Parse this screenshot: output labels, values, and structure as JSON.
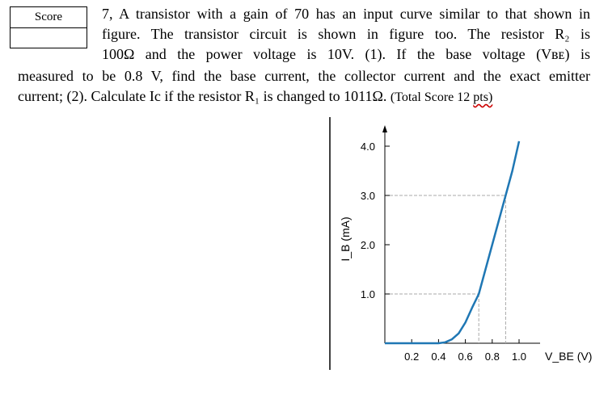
{
  "score_box": {
    "label": "Score"
  },
  "question": {
    "line1": "7, A transistor with a gain of 70 has an input curve similar to that shown in",
    "line2": "figure. The transistor circuit is shown in figure too. The resistor R₂ is",
    "line3": "100Ω and the power voltage is 10V. (1). If the base voltage (Vʙᴇ) is",
    "line4": "measured to be 0.8 V, find the base current, the collector current and the exact emitter",
    "line5_main": "current; (2). Calculate Ic if the resistor R₁ is changed to 1011Ω. ",
    "line5_total": "(Total Score 12 ",
    "line5_pts": "pts)"
  },
  "chart_data": {
    "type": "line",
    "ylabel": "I_B (mA)",
    "xlabel": "V_BE (V)",
    "x_ticks": [
      "0.2",
      "0.4",
      "0.6",
      "0.8",
      "1.0"
    ],
    "x_tick_values": [
      0.2,
      0.4,
      0.6,
      0.8,
      1.0
    ],
    "y_ticks": [
      "1.0",
      "2.0",
      "3.0",
      "4.0"
    ],
    "y_tick_values": [
      1.0,
      2.0,
      3.0,
      4.0
    ],
    "xlim": [
      0,
      1.2
    ],
    "ylim": [
      0,
      4.5
    ],
    "series": [
      {
        "color": "#1f77b4",
        "x": [
          0.0,
          0.4,
          0.45,
          0.5,
          0.55,
          0.6,
          0.65,
          0.7,
          0.75,
          0.8,
          0.85,
          0.9,
          0.95,
          1.0
        ],
        "y": [
          0.0,
          0.0,
          0.02,
          0.08,
          0.2,
          0.42,
          0.72,
          1.0,
          1.5,
          2.0,
          2.5,
          3.0,
          3.5,
          4.1
        ]
      }
    ],
    "reference_lines": [
      {
        "x": 0.7,
        "y": 1.0
      },
      {
        "x": 0.9,
        "y": 3.0
      }
    ],
    "grid": false
  }
}
